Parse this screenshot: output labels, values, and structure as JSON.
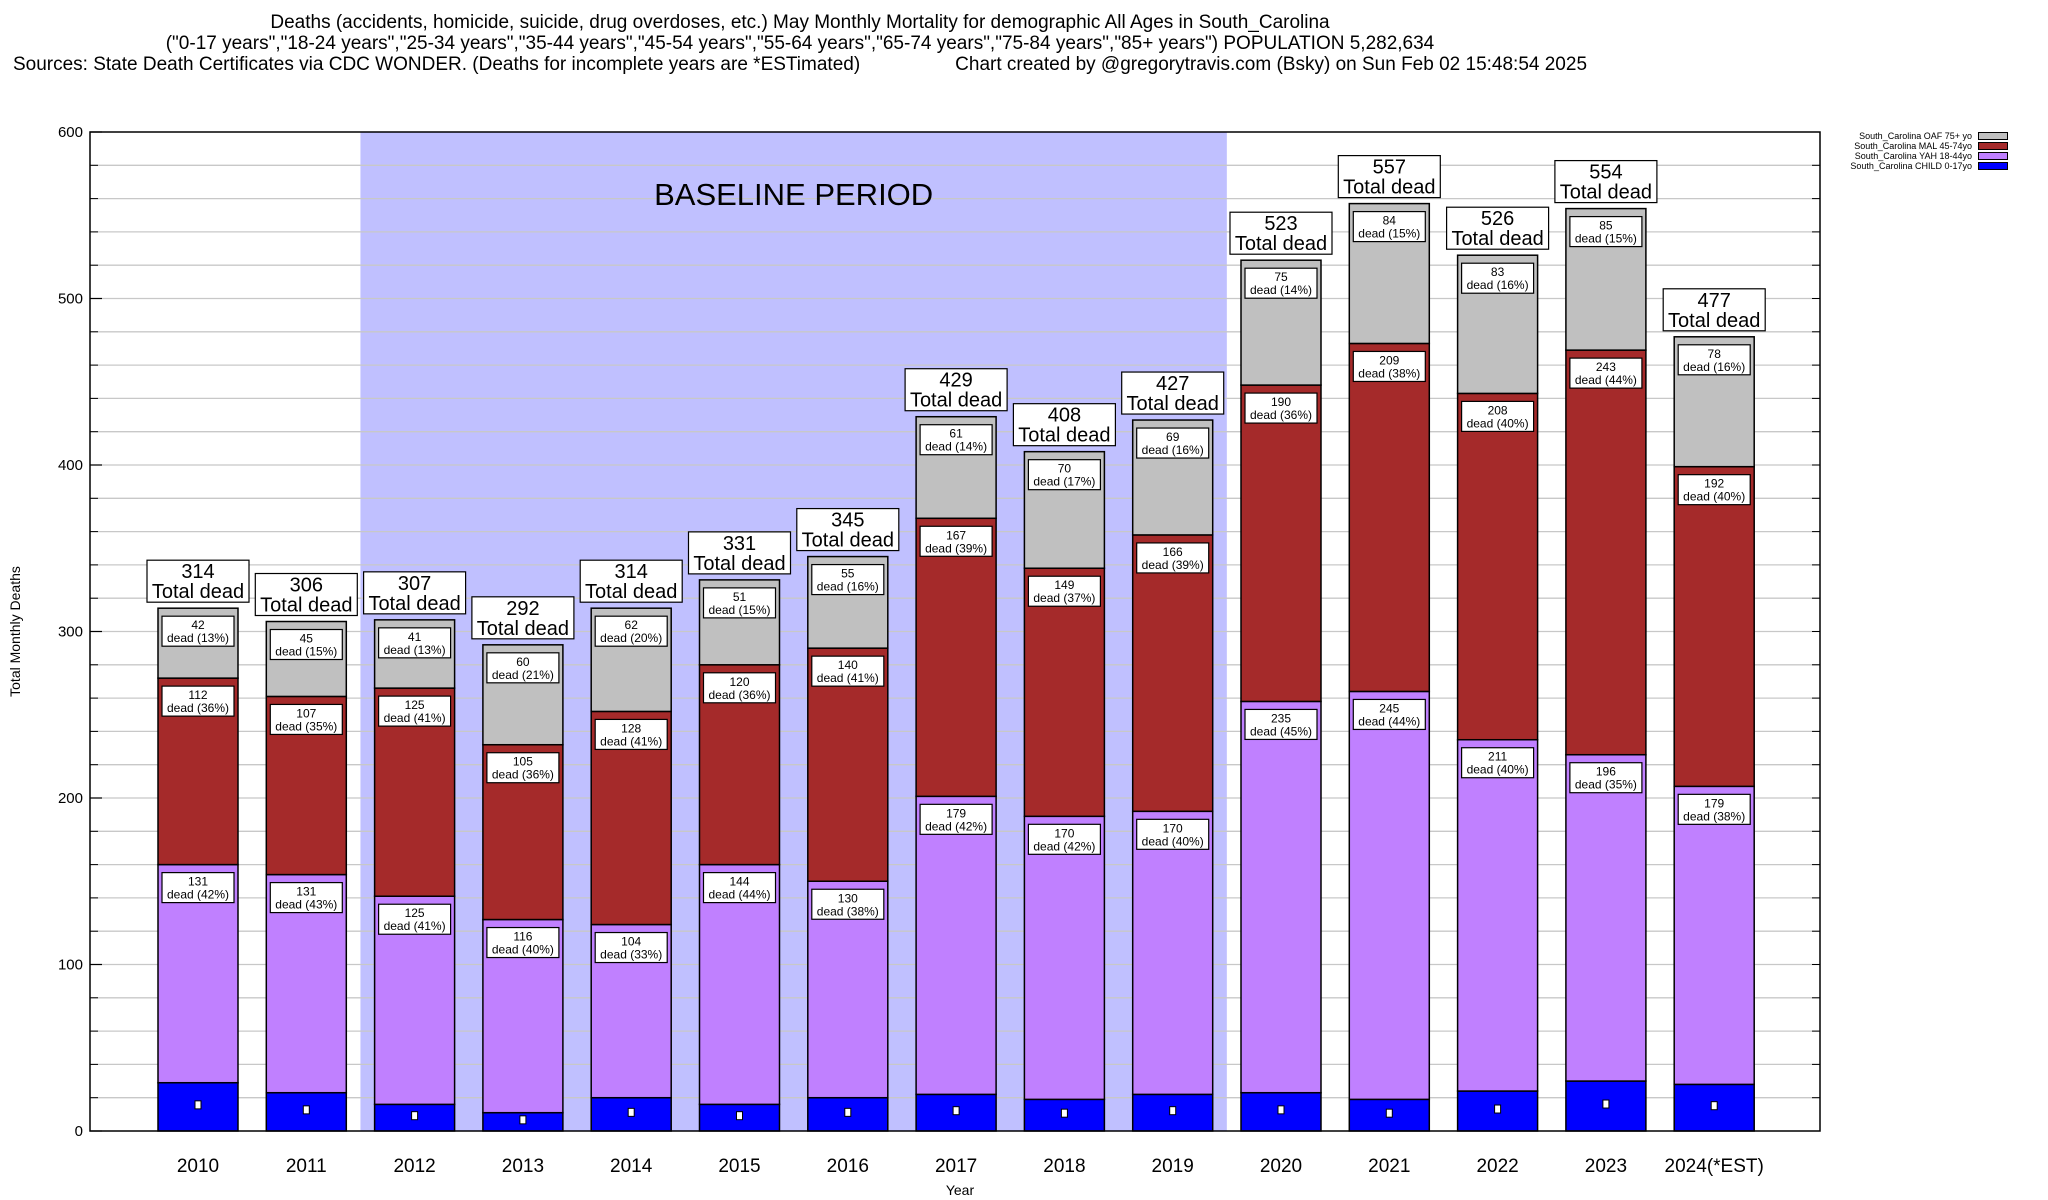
{
  "chart_data": {
    "type": "bar",
    "stacked": true,
    "title": "Deaths (accidents, homicide, suicide, drug overdoses, etc.) May Monthly Mortality for demographic All Ages in South_Carolina",
    "subtitle": "(\"0-17 years\",\"18-24 years\",\"25-34 years\",\"35-44 years\",\"45-54 years\",\"55-64 years\",\"65-74 years\",\"75-84 years\",\"85+ years\") POPULATION 5,282,634",
    "sources": "Sources: State Death Certificates via CDC WONDER. (Deaths for incomplete years are *ESTimated)",
    "credit": "Chart created by @gregorytravis.com (Bsky) on Sun Feb 02 15:48:54 2025",
    "xlabel": "Year",
    "ylabel": "Total Monthly Deaths",
    "ylim": [
      0,
      600
    ],
    "yticks": [
      0,
      100,
      200,
      300,
      400,
      500,
      600
    ],
    "grid": true,
    "legend_position": "top-right",
    "annotation": "BASELINE PERIOD",
    "baseline_range": [
      "2012",
      "2019"
    ],
    "total_label_suffix": "Total dead",
    "segment_label_prefix": "dead",
    "categories": [
      "2010",
      "2011",
      "2012",
      "2013",
      "2014",
      "2015",
      "2016",
      "2017",
      "2018",
      "2019",
      "2020",
      "2021",
      "2022",
      "2023",
      "2024(*EST)"
    ],
    "totals": [
      314,
      306,
      307,
      292,
      314,
      331,
      345,
      429,
      408,
      427,
      523,
      557,
      526,
      554,
      477
    ],
    "series": [
      {
        "name": "South_Carolina CHILD 0-17yo",
        "color": "#0000ff",
        "labeled": false,
        "values": [
          29,
          23,
          16,
          11,
          20,
          16,
          20,
          22,
          19,
          22,
          23,
          19,
          24,
          30,
          28
        ]
      },
      {
        "name": "South_Carolina YAH 18-44yo",
        "color": "#c080ff",
        "labeled": true,
        "values": [
          131,
          131,
          125,
          116,
          104,
          144,
          130,
          179,
          170,
          170,
          235,
          245,
          211,
          196,
          179
        ],
        "percents": [
          42,
          43,
          41,
          40,
          33,
          44,
          38,
          42,
          42,
          40,
          45,
          44,
          40,
          35,
          38
        ]
      },
      {
        "name": "South_Carolina MAL 45-74yo",
        "color": "#a52a2a",
        "labeled": true,
        "values": [
          112,
          107,
          125,
          105,
          128,
          120,
          140,
          167,
          149,
          166,
          190,
          209,
          208,
          243,
          192
        ],
        "percents": [
          36,
          35,
          41,
          36,
          41,
          36,
          41,
          39,
          37,
          39,
          36,
          38,
          40,
          44,
          40
        ]
      },
      {
        "name": "South_Carolina OAF 75+ yo",
        "color": "#c0c0c0",
        "labeled": true,
        "values": [
          42,
          45,
          41,
          60,
          62,
          51,
          55,
          61,
          70,
          69,
          75,
          84,
          83,
          85,
          78
        ],
        "percents": [
          13,
          15,
          13,
          21,
          20,
          15,
          16,
          14,
          17,
          16,
          14,
          15,
          16,
          15,
          16
        ]
      }
    ],
    "legend_order": [
      "South_Carolina OAF 75+ yo",
      "South_Carolina MAL 45-74yo",
      "South_Carolina YAH 18-44yo",
      "South_Carolina CHILD 0-17yo"
    ],
    "colors": {
      "baseline_shade": "#c0c0ff",
      "grid": "#c8c8c8"
    }
  }
}
